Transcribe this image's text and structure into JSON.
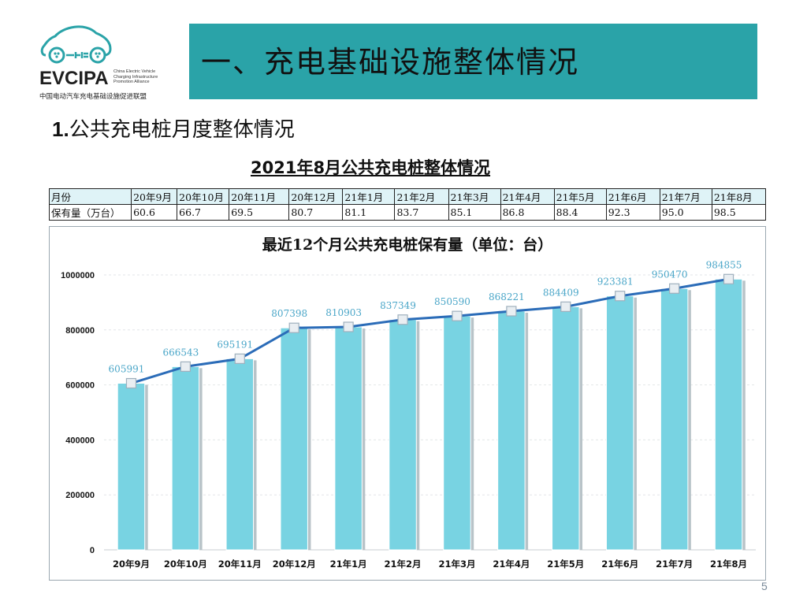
{
  "logo": {
    "mark": "EVCIPA",
    "en_lines": [
      "China Electric Vehicle",
      "Charging Infrastructure",
      "Promotion Alliance"
    ],
    "cn_name": "中国电动汽车充电基础设施促进联盟",
    "icon": "electric-car-plug-icon"
  },
  "header": {
    "title": "一、充电基础设施整体情况",
    "band_color": "#2aa3a8"
  },
  "section": {
    "number": "1.",
    "title": "公共充电桩月度整体情况"
  },
  "table": {
    "title": "2021年8月公共充电桩整体情况",
    "row_labels": [
      "月份",
      "保有量（万台）"
    ],
    "months": [
      "20年9月",
      "20年10月",
      "20年11月",
      "20年12月",
      "21年1月",
      "21年2月",
      "21年3月",
      "21年4月",
      "21年5月",
      "21年6月",
      "21年7月",
      "21年8月"
    ],
    "values": [
      "60.6",
      "66.7",
      "69.5",
      "80.7",
      "81.1",
      "83.7",
      "85.1",
      "86.8",
      "88.4",
      "92.3",
      "95.0",
      "98.5"
    ]
  },
  "chart_data": {
    "type": "bar",
    "title": "最近12个月公共充电桩保有量（单位：台）",
    "categories": [
      "20年9月",
      "20年10月",
      "20年11月",
      "20年12月",
      "21年1月",
      "21年2月",
      "21年3月",
      "21年4月",
      "21年5月",
      "21年6月",
      "21年7月",
      "21年8月"
    ],
    "values": [
      605991,
      666543,
      695191,
      807398,
      810903,
      837349,
      850590,
      868221,
      884409,
      923381,
      950470,
      984855
    ],
    "overlay_line": true,
    "ylim": [
      0,
      1000000
    ],
    "yticks": [
      "0",
      "200000",
      "400000",
      "600000",
      "800000",
      "1000000"
    ],
    "grid": true,
    "legend": "none",
    "colors": {
      "bar": "#78d3e2",
      "bar_shadow": "#b8c3c8",
      "line": "#2b6cb8",
      "data_label": "#4aa6c8"
    }
  },
  "page": {
    "number": "5"
  }
}
